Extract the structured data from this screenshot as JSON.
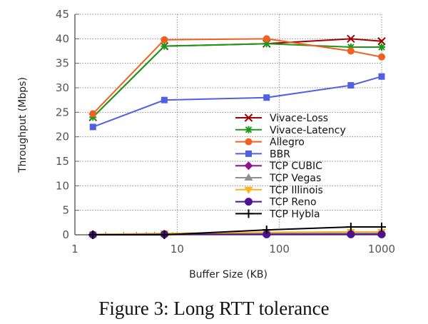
{
  "chart_data": {
    "type": "line",
    "xlabel": "Buffer Size (KB)",
    "ylabel": "Throughput (Mbps)",
    "xscale": "log",
    "xlim": [
      1,
      1000
    ],
    "ylim": [
      0,
      45
    ],
    "xticks": [
      "1",
      "10",
      "100",
      "1000"
    ],
    "yticks": [
      "0",
      "5",
      "10",
      "15",
      "20",
      "25",
      "30",
      "35",
      "40",
      "45"
    ],
    "grid": true,
    "legend": "center-right",
    "x": [
      1.5,
      7.5,
      75,
      500,
      1000
    ],
    "series": [
      {
        "name": "Vivace-Loss",
        "color": "#a00000",
        "marker": "x",
        "values": [
          24,
          38.5,
          39,
          40,
          39.5
        ]
      },
      {
        "name": "Vivace-Latency",
        "color": "#1a9a1a",
        "marker": "asterisk",
        "values": [
          24,
          38.5,
          39,
          38.3,
          38.3
        ]
      },
      {
        "name": "Allegro",
        "color": "#f06020",
        "marker": "circle",
        "values": [
          24.7,
          39.8,
          40,
          37.5,
          36.3
        ]
      },
      {
        "name": "BBR",
        "color": "#5060e0",
        "marker": "square",
        "values": [
          22,
          27.5,
          28,
          30.5,
          32.3
        ]
      },
      {
        "name": "TCP CUBIC",
        "color": "#901090",
        "marker": "diamond",
        "values": [
          0.1,
          0.2,
          0.2,
          0.2,
          0.2
        ]
      },
      {
        "name": "TCP Vegas",
        "color": "#909090",
        "marker": "triangle-up",
        "values": [
          0.1,
          0.2,
          0.3,
          0.3,
          0.3
        ]
      },
      {
        "name": "TCP Illinois",
        "color": "#ffb020",
        "marker": "triangle-down",
        "values": [
          0.1,
          0.3,
          0.5,
          0.6,
          0.6
        ]
      },
      {
        "name": "TCP Reno",
        "color": "#501090",
        "marker": "hexagon",
        "values": [
          0,
          0.1,
          0.1,
          0.1,
          0.1
        ]
      },
      {
        "name": "TCP Hybla",
        "color": "#000000",
        "marker": "plus",
        "values": [
          0,
          0,
          1,
          1.6,
          1.6
        ]
      }
    ]
  },
  "caption": "Figure 3: Long RTT tolerance"
}
